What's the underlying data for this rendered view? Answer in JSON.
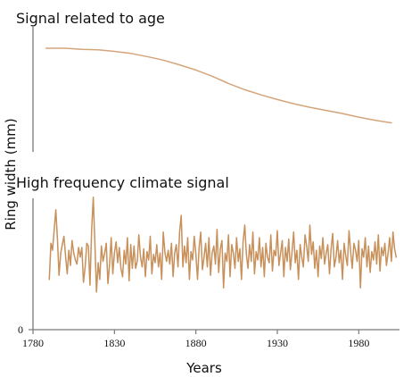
{
  "chart_data": [
    {
      "type": "line",
      "title": "Signal related to age",
      "ylabel": "Ring width (mm)",
      "xlim": [
        1780,
        2005
      ],
      "grid": false,
      "series": [
        {
          "x": [
            1788,
            1800,
            1810,
            1820,
            1830,
            1840,
            1850,
            1860,
            1870,
            1880,
            1890,
            1900,
            1910,
            1920,
            1930,
            1940,
            1950,
            1960,
            1970,
            1980,
            1990,
            2000
          ],
          "values": [
            1.0,
            1.0,
            0.99,
            0.985,
            0.97,
            0.95,
            0.92,
            0.885,
            0.84,
            0.79,
            0.73,
            0.66,
            0.6,
            0.55,
            0.505,
            0.465,
            0.43,
            0.4,
            0.37,
            0.335,
            0.305,
            0.28
          ],
          "color": "#d4a57a"
        }
      ]
    },
    {
      "type": "line",
      "title": "High frequency climate signal",
      "xlabel": "Years",
      "ylabel": "Ring width (mm)",
      "xlim": [
        1780,
        2005
      ],
      "ylim": [
        0,
        1
      ],
      "x_ticks": [
        "1780",
        "1830",
        "1880",
        "1930",
        "1980"
      ],
      "y_ticks": [
        "0"
      ],
      "grid": false,
      "series": [
        {
          "x_start": 1790,
          "x_step": 1,
          "values": [
            0.36,
            0.62,
            0.57,
            0.71,
            0.86,
            0.65,
            0.39,
            0.55,
            0.61,
            0.67,
            0.53,
            0.4,
            0.57,
            0.46,
            0.64,
            0.55,
            0.5,
            0.47,
            0.59,
            0.52,
            0.59,
            0.34,
            0.45,
            0.62,
            0.6,
            0.32,
            0.72,
            0.95,
            0.62,
            0.27,
            0.48,
            0.36,
            0.6,
            0.49,
            0.55,
            0.62,
            0.33,
            0.47,
            0.66,
            0.4,
            0.55,
            0.63,
            0.48,
            0.59,
            0.44,
            0.38,
            0.57,
            0.47,
            0.66,
            0.35,
            0.61,
            0.44,
            0.6,
            0.44,
            0.49,
            0.68,
            0.52,
            0.45,
            0.58,
            0.38,
            0.56,
            0.5,
            0.67,
            0.4,
            0.54,
            0.48,
            0.61,
            0.45,
            0.55,
            0.36,
            0.7,
            0.55,
            0.49,
            0.57,
            0.47,
            0.62,
            0.38,
            0.55,
            0.61,
            0.45,
            0.7,
            0.82,
            0.45,
            0.6,
            0.48,
            0.66,
            0.36,
            0.56,
            0.5,
            0.67,
            0.54,
            0.36,
            0.59,
            0.7,
            0.43,
            0.52,
            0.62,
            0.45,
            0.66,
            0.39,
            0.55,
            0.6,
            0.47,
            0.72,
            0.41,
            0.58,
            0.64,
            0.3,
            0.55,
            0.49,
            0.68,
            0.38,
            0.61,
            0.55,
            0.44,
            0.66,
            0.49,
            0.58,
            0.36,
            0.63,
            0.75,
            0.54,
            0.44,
            0.61,
            0.49,
            0.7,
            0.4,
            0.56,
            0.5,
            0.66,
            0.45,
            0.59,
            0.38,
            0.62,
            0.52,
            0.48,
            0.68,
            0.42,
            0.57,
            0.53,
            0.71,
            0.46,
            0.55,
            0.64,
            0.38,
            0.59,
            0.49,
            0.65,
            0.43,
            0.55,
            0.7,
            0.48,
            0.57,
            0.36,
            0.61,
            0.52,
            0.45,
            0.68,
            0.6,
            0.49,
            0.75,
            0.54,
            0.63,
            0.44,
            0.57,
            0.38,
            0.6,
            0.51,
            0.66,
            0.47,
            0.55,
            0.61,
            0.4,
            0.58,
            0.69,
            0.45,
            0.52,
            0.64,
            0.48,
            0.57,
            0.36,
            0.62,
            0.53,
            0.46,
            0.71,
            0.56,
            0.44,
            0.62,
            0.57,
            0.49,
            0.64,
            0.3,
            0.58,
            0.52,
            0.66,
            0.45,
            0.6,
            0.41,
            0.56,
            0.5,
            0.63,
            0.47,
            0.68,
            0.42,
            0.59,
            0.53,
            0.62,
            0.46,
            0.55,
            0.66,
            0.49,
            0.7,
            0.58,
            0.52
          ],
          "color": "#c8905a"
        }
      ]
    }
  ]
}
